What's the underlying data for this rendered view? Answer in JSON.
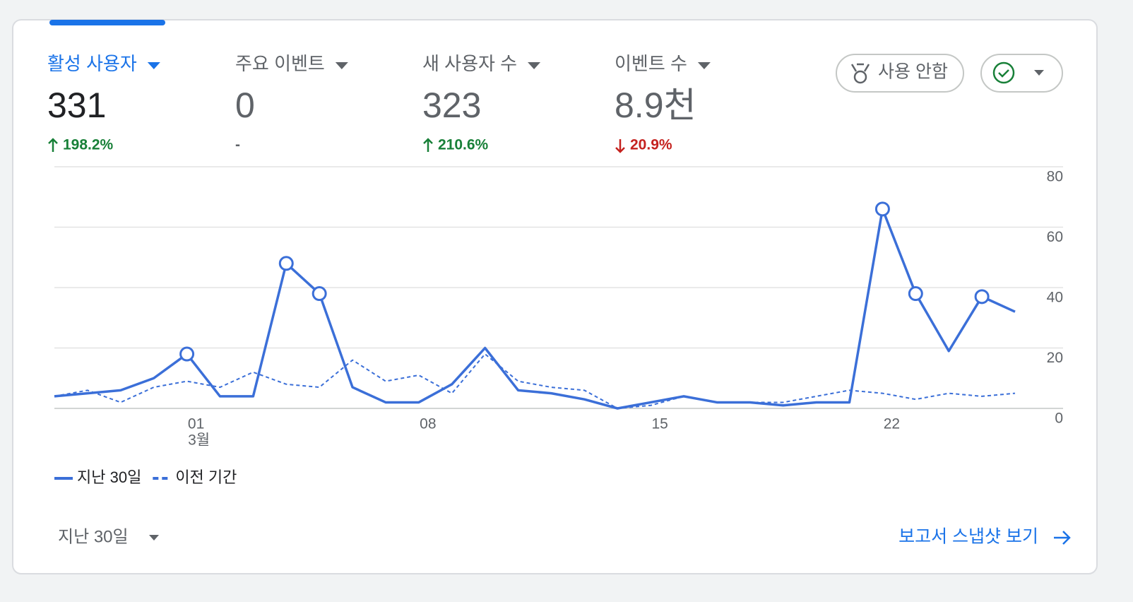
{
  "metrics": [
    {
      "name": "활성 사용자",
      "value": "331",
      "change": "198.2%",
      "trend": "up",
      "active": true
    },
    {
      "name": "주요 이벤트",
      "value": "0",
      "change": "-"
    },
    {
      "name": "새 사용자 수",
      "value": "323",
      "change": "210.6%",
      "trend": "up"
    },
    {
      "name": "이벤트 수",
      "value": "8.9천",
      "change": "20.9%",
      "trend": "down"
    }
  ],
  "buttons": {
    "disable": "사용 안함"
  },
  "chart_data": {
    "type": "line",
    "categories": [
      null,
      null,
      null,
      null,
      "01",
      null,
      null,
      null,
      null,
      null,
      null,
      "08",
      null,
      null,
      null,
      null,
      null,
      null,
      "15",
      null,
      null,
      null,
      null,
      null,
      null,
      "22",
      null,
      null,
      null,
      null
    ],
    "month_label": "3월",
    "series": [
      {
        "name": "지난 30일",
        "color": "#3b6fd8",
        "style": "solid",
        "values": [
          4,
          5,
          6,
          10,
          18,
          4,
          4,
          48,
          38,
          7,
          2,
          2,
          8,
          20,
          6,
          5,
          3,
          0,
          2,
          4,
          2,
          2,
          1,
          2,
          2,
          66,
          38,
          19,
          37,
          32
        ],
        "anomalies": [
          4,
          7,
          8,
          25,
          26,
          28
        ]
      },
      {
        "name": "이전 기간",
        "color": "#3b6fd8",
        "style": "dashed",
        "values": [
          4,
          6,
          2,
          7,
          9,
          7,
          12,
          8,
          7,
          16,
          9,
          11,
          5,
          18,
          9,
          7,
          6,
          0,
          1,
          4,
          2,
          2,
          2,
          4,
          6,
          5,
          3,
          5,
          4,
          5
        ]
      }
    ],
    "ylim": [
      0,
      80
    ],
    "yticks": [
      0,
      20,
      40,
      60,
      80
    ],
    "grid": true
  },
  "footer": {
    "range": "지난 30일",
    "link": "보고서 스냅샷 보기"
  }
}
